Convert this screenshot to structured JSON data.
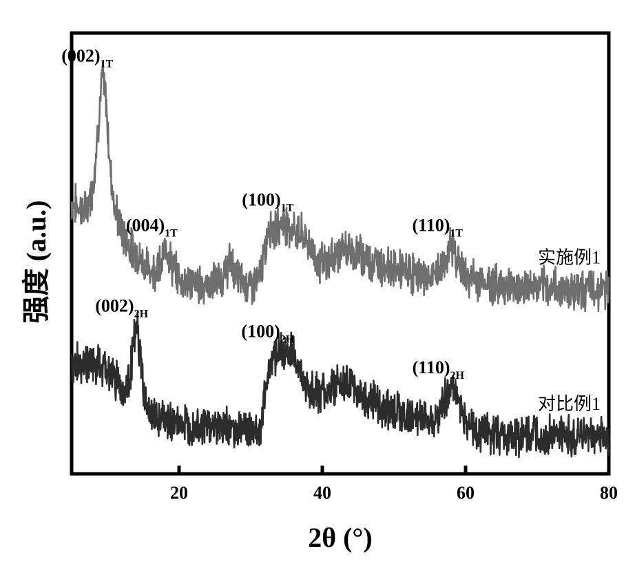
{
  "chart_data": {
    "type": "line",
    "xlabel": "2θ (°)",
    "ylabel": "强度 (a.u.)",
    "xlim": [
      5,
      80
    ],
    "ylim": [
      0,
      100
    ],
    "x_ticks": [
      20,
      40,
      60,
      80
    ],
    "x_tick_labels": [
      "20",
      "40",
      "60",
      "80"
    ],
    "y_ticks_shown": false,
    "series": [
      {
        "name": "实施例1",
        "color": "#6e6e6e",
        "points": [
          [
            5,
            62
          ],
          [
            7,
            60
          ],
          [
            8,
            66
          ],
          [
            8.8,
            82
          ],
          [
            9.3,
            92
          ],
          [
            9.8,
            86
          ],
          [
            10.3,
            72
          ],
          [
            11,
            61
          ],
          [
            12,
            55
          ],
          [
            13,
            52
          ],
          [
            14.5,
            49
          ],
          [
            16,
            46
          ],
          [
            17.5,
            47
          ],
          [
            18.3,
            52
          ],
          [
            19,
            47
          ],
          [
            20,
            44
          ],
          [
            22,
            43
          ],
          [
            24,
            42.5
          ],
          [
            26,
            44
          ],
          [
            27.2,
            48
          ],
          [
            28,
            45
          ],
          [
            29,
            43
          ],
          [
            30,
            42.5
          ],
          [
            31,
            43
          ],
          [
            32,
            50
          ],
          [
            32.5,
            57
          ],
          [
            33.5,
            55
          ],
          [
            34.5,
            58
          ],
          [
            35.5,
            56
          ],
          [
            36.5,
            55
          ],
          [
            37.5,
            54
          ],
          [
            38.5,
            51
          ],
          [
            39.5,
            48
          ],
          [
            40.5,
            47.5
          ],
          [
            42,
            50
          ],
          [
            43.5,
            51
          ],
          [
            45,
            50
          ],
          [
            47,
            48
          ],
          [
            49,
            47
          ],
          [
            51,
            46
          ],
          [
            53,
            45
          ],
          [
            55,
            44
          ],
          [
            56.5,
            46
          ],
          [
            57.5,
            50
          ],
          [
            58.2,
            52
          ],
          [
            59,
            48
          ],
          [
            60,
            44.5
          ],
          [
            62,
            43.5
          ],
          [
            65,
            42.5
          ],
          [
            68,
            42
          ],
          [
            72,
            42
          ],
          [
            76,
            41.5
          ],
          [
            80,
            41.5
          ]
        ]
      },
      {
        "name": "对比例1",
        "color": "#2c2c2c",
        "points": [
          [
            5,
            24
          ],
          [
            7,
            24.5
          ],
          [
            9,
            23
          ],
          [
            10.5,
            22
          ],
          [
            11.5,
            20
          ],
          [
            12.3,
            17
          ],
          [
            13,
            20
          ],
          [
            13.6,
            28
          ],
          [
            14.1,
            33
          ],
          [
            14.6,
            25
          ],
          [
            15.3,
            15
          ],
          [
            16,
            12
          ],
          [
            17,
            11
          ],
          [
            18,
            10.5
          ],
          [
            20,
            10
          ],
          [
            22,
            9.5
          ],
          [
            24,
            9.5
          ],
          [
            26,
            9
          ],
          [
            28,
            9
          ],
          [
            30,
            8.5
          ],
          [
            31.5,
            8.5
          ],
          [
            32.2,
            20
          ],
          [
            33,
            26
          ],
          [
            34,
            27
          ],
          [
            35,
            26
          ],
          [
            36,
            27
          ],
          [
            37,
            21
          ],
          [
            38,
            18
          ],
          [
            40,
            17
          ],
          [
            42,
            19
          ],
          [
            43,
            19.5
          ],
          [
            44.5,
            18
          ],
          [
            46,
            16
          ],
          [
            48,
            14
          ],
          [
            50,
            13
          ],
          [
            52,
            11.5
          ],
          [
            54,
            11
          ],
          [
            55.5,
            11.5
          ],
          [
            56.5,
            13
          ],
          [
            57.5,
            17
          ],
          [
            58.3,
            18.5
          ],
          [
            59.2,
            15
          ],
          [
            60,
            10
          ],
          [
            62,
            8
          ],
          [
            64,
            7.5
          ],
          [
            67,
            7
          ],
          [
            70,
            7
          ],
          [
            75,
            7
          ],
          [
            80,
            7
          ]
        ]
      }
    ],
    "peak_labels": [
      {
        "x": 9.3,
        "y": 92,
        "main": "(002)",
        "sub": "1T"
      },
      {
        "x": 18.3,
        "y": 52,
        "main": "(004)",
        "sub": "1T"
      },
      {
        "x": 34.5,
        "y": 58,
        "main": "(100)",
        "sub": "1T"
      },
      {
        "x": 58.2,
        "y": 52,
        "main": "(110)",
        "sub": "1T"
      },
      {
        "x": 14.1,
        "y": 33,
        "main": "(002)",
        "sub": "2H"
      },
      {
        "x": 34.5,
        "y": 27,
        "main": "(100)",
        "sub": "2H"
      },
      {
        "x": 58.3,
        "y": 18.5,
        "main": "(110)",
        "sub": "2H"
      }
    ]
  }
}
